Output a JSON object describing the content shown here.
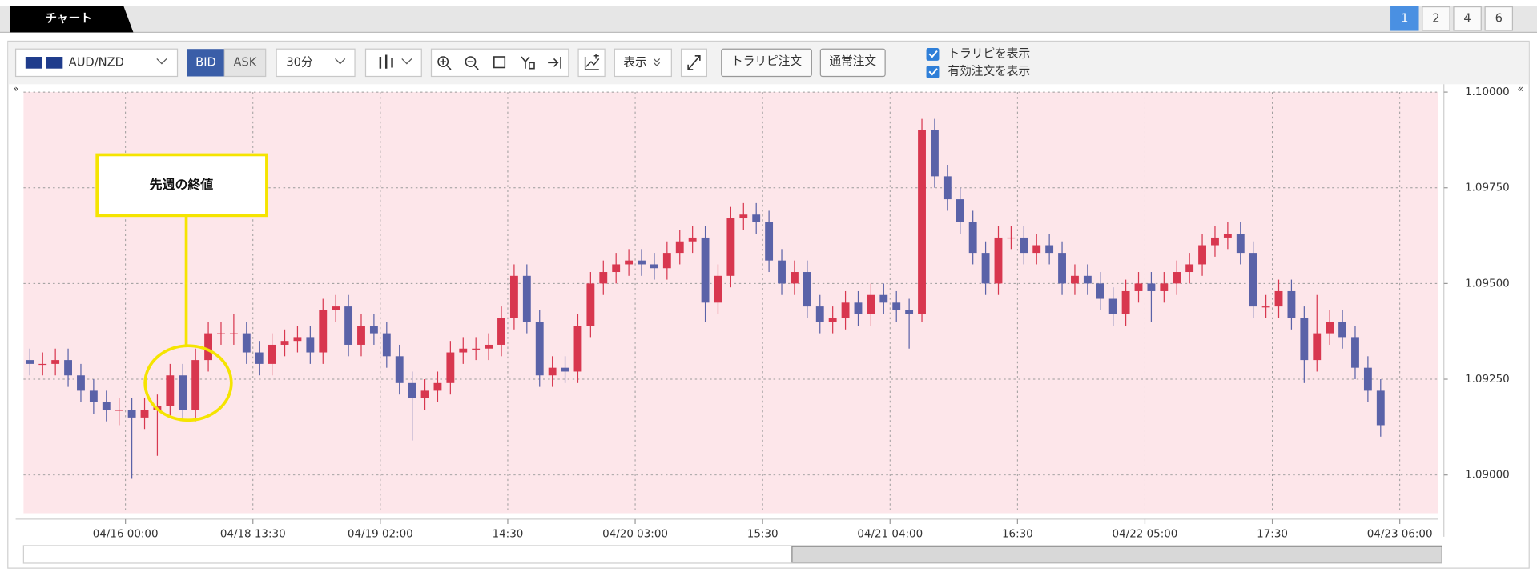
{
  "tab": "チャート",
  "layout_buttons": [
    "1",
    "2",
    "4",
    "6"
  ],
  "toolbar": {
    "pair": "AUD/NZD",
    "bid": "BID",
    "ask": "ASK",
    "interval": "30分",
    "display": "表示",
    "trail_order": "トラリピ注文",
    "normal_order": "通常注文",
    "checkboxes": [
      "トラリピを表示",
      "有効注文を表示"
    ],
    "left_toggle": "»",
    "right_toggle": "«"
  },
  "chart_data": {
    "type": "candlestick",
    "annotation": "先週の終値",
    "colors": {
      "up": "#d8374f",
      "down": "#5a62a8",
      "background": "#fde6ea"
    },
    "grid": true,
    "xlim": [
      -0.5,
      110.5
    ],
    "ylim": [
      1.089,
      1.1
    ],
    "yticks": [
      {
        "value": 1.09,
        "label": "1.09000"
      },
      {
        "value": 1.0925,
        "label": "1.09250"
      },
      {
        "value": 1.095,
        "label": "1.09500"
      },
      {
        "value": 1.0975,
        "label": "1.09750"
      },
      {
        "value": 1.1,
        "label": "1.10000"
      }
    ],
    "xticks": [
      {
        "value": 7.5,
        "label": "04/16 00:00"
      },
      {
        "value": 17.5,
        "label": "04/18 13:30"
      },
      {
        "value": 27.5,
        "label": "04/19 02:00"
      },
      {
        "value": 37.5,
        "label": "14:30"
      },
      {
        "value": 47.5,
        "label": "04/20 03:00"
      },
      {
        "value": 57.5,
        "label": "15:30"
      },
      {
        "value": 67.5,
        "label": "04/21 04:00"
      },
      {
        "value": 77.5,
        "label": "16:30"
      },
      {
        "value": 87.5,
        "label": "04/22 05:00"
      },
      {
        "value": 97.5,
        "label": "17:30"
      },
      {
        "value": 107.5,
        "label": "04/23 06:00"
      }
    ],
    "open": [
      1.093,
      1.0929,
      1.0929,
      1.093,
      1.0926,
      1.0922,
      1.0919,
      1.0917,
      1.0917,
      1.0915,
      1.0917,
      1.0918,
      1.0926,
      1.0917,
      1.093,
      1.0937,
      1.0937,
      1.0937,
      1.0932,
      1.0929,
      1.0934,
      1.0935,
      1.0936,
      1.0932,
      1.0943,
      1.0944,
      1.0934,
      1.0939,
      1.0937,
      1.0931,
      1.0924,
      1.092,
      1.0922,
      1.0924,
      1.0932,
      1.0933,
      1.0933,
      1.0934,
      1.0941,
      1.0952,
      1.094,
      1.0926,
      1.0928,
      1.0927,
      1.0939,
      1.095,
      1.0953,
      1.0955,
      1.0956,
      1.0955,
      1.0954,
      1.0958,
      1.0961,
      1.0962,
      1.0945,
      1.0952,
      1.0967,
      1.0968,
      1.0966,
      1.0956,
      1.095,
      1.0953,
      1.0944,
      1.094,
      1.0941,
      1.0945,
      1.0942,
      1.0947,
      1.0945,
      1.0943,
      1.0942,
      1.099,
      1.0978,
      1.0972,
      1.0966,
      1.0958,
      1.095,
      1.0962,
      1.0962,
      1.0958,
      1.096,
      1.0958,
      1.095,
      1.0952,
      1.095,
      1.0946,
      1.0942,
      1.0948,
      1.095,
      1.0948,
      1.095,
      1.0953,
      1.0955,
      1.096,
      1.0962,
      1.0963,
      1.0958,
      1.0944,
      1.0944,
      1.0948,
      1.0941,
      1.093,
      1.0937,
      1.094,
      1.0936,
      1.0928,
      1.0922
    ],
    "high": [
      1.0933,
      1.0932,
      1.0933,
      1.0933,
      1.0929,
      1.0925,
      1.0922,
      1.092,
      1.092,
      1.092,
      1.0921,
      1.0929,
      1.0929,
      1.0933,
      1.094,
      1.094,
      1.0942,
      1.094,
      1.0935,
      1.0937,
      1.0938,
      1.0939,
      1.0939,
      1.0946,
      1.0947,
      1.0947,
      1.0942,
      1.0942,
      1.094,
      1.0934,
      1.0927,
      1.0925,
      1.0927,
      1.0935,
      1.0936,
      1.0936,
      1.0937,
      1.0944,
      1.0955,
      1.0955,
      1.0943,
      1.0931,
      1.0931,
      1.0942,
      1.0953,
      1.0956,
      1.0958,
      1.0959,
      1.0959,
      1.0958,
      1.0961,
      1.0964,
      1.0965,
      1.0965,
      1.0955,
      1.097,
      1.0971,
      1.0971,
      1.0969,
      1.0959,
      1.0956,
      1.0956,
      1.0947,
      1.0944,
      1.0948,
      1.0948,
      1.095,
      1.095,
      1.0948,
      1.0946,
      1.0993,
      1.0993,
      1.0981,
      1.0975,
      1.0969,
      1.0961,
      1.0965,
      1.0965,
      1.0965,
      1.0963,
      1.0963,
      1.0961,
      1.0955,
      1.0955,
      1.0953,
      1.0949,
      1.0951,
      1.0953,
      1.0953,
      1.0953,
      1.0956,
      1.0958,
      1.0963,
      1.0965,
      1.0966,
      1.0966,
      1.0961,
      1.0947,
      1.0951,
      1.0951,
      1.0944,
      1.0947,
      1.0943,
      1.0943,
      1.0939,
      1.0931,
      1.0925
    ],
    "low": [
      1.0926,
      1.0926,
      1.0926,
      1.0923,
      1.0919,
      1.0916,
      1.0914,
      1.0913,
      1.0899,
      1.0912,
      1.0905,
      1.0915,
      1.0914,
      1.0914,
      1.0927,
      1.0934,
      1.0934,
      1.0929,
      1.0926,
      1.0926,
      1.0931,
      1.0932,
      1.0929,
      1.0929,
      1.094,
      1.0931,
      1.0931,
      1.0934,
      1.0928,
      1.0921,
      1.0909,
      1.0917,
      1.0919,
      1.0921,
      1.0929,
      1.093,
      1.093,
      1.0931,
      1.0938,
      1.0937,
      1.0923,
      1.0923,
      1.0924,
      1.0924,
      1.0936,
      1.0947,
      1.095,
      1.0952,
      1.0952,
      1.0951,
      1.0951,
      1.0955,
      1.0958,
      1.094,
      1.0942,
      1.0949,
      1.0964,
      1.0963,
      1.0953,
      1.0947,
      1.0947,
      1.0941,
      1.0937,
      1.0937,
      1.0938,
      1.0939,
      1.0939,
      1.0942,
      1.094,
      1.0933,
      1.094,
      1.0975,
      1.0969,
      1.0963,
      1.0955,
      1.0947,
      1.0947,
      1.0959,
      1.0955,
      1.0955,
      1.0955,
      1.0947,
      1.0947,
      1.0947,
      1.0943,
      1.0939,
      1.0939,
      1.0945,
      1.094,
      1.0945,
      1.0947,
      1.095,
      1.0952,
      1.0957,
      1.0959,
      1.0955,
      1.0941,
      1.0941,
      1.0941,
      1.0938,
      1.0924,
      1.0927,
      1.0934,
      1.0933,
      1.0925,
      1.0919,
      1.091
    ],
    "close": [
      1.0929,
      1.0929,
      1.093,
      1.0926,
      1.0922,
      1.0919,
      1.0917,
      1.0917,
      1.0915,
      1.0917,
      1.0918,
      1.0926,
      1.0917,
      1.093,
      1.0937,
      1.0937,
      1.0937,
      1.0932,
      1.0929,
      1.0934,
      1.0935,
      1.0936,
      1.0932,
      1.0943,
      1.0944,
      1.0934,
      1.0939,
      1.0937,
      1.0931,
      1.0924,
      1.092,
      1.0922,
      1.0924,
      1.0932,
      1.0933,
      1.0933,
      1.0934,
      1.0941,
      1.0952,
      1.094,
      1.0926,
      1.0928,
      1.0927,
      1.0939,
      1.095,
      1.0953,
      1.0955,
      1.0956,
      1.0955,
      1.0954,
      1.0958,
      1.0961,
      1.0962,
      1.0945,
      1.0952,
      1.0967,
      1.0968,
      1.0966,
      1.0956,
      1.095,
      1.0953,
      1.0944,
      1.094,
      1.0941,
      1.0945,
      1.0942,
      1.0947,
      1.0945,
      1.0943,
      1.0942,
      1.099,
      1.0978,
      1.0972,
      1.0966,
      1.0958,
      1.095,
      1.0962,
      1.0962,
      1.0958,
      1.096,
      1.0958,
      1.095,
      1.0952,
      1.095,
      1.0946,
      1.0942,
      1.0948,
      1.095,
      1.0948,
      1.095,
      1.0953,
      1.0955,
      1.096,
      1.0962,
      1.0963,
      1.0958,
      1.0944,
      1.0944,
      1.0948,
      1.0941,
      1.093,
      1.0937,
      1.094,
      1.0936,
      1.0928,
      1.0922,
      1.0913
    ]
  }
}
